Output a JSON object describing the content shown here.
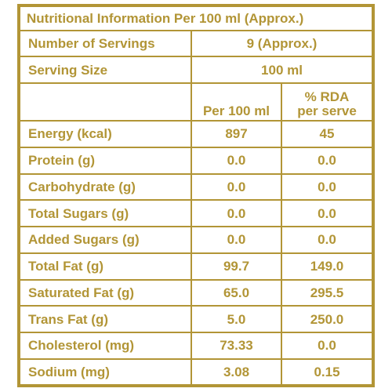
{
  "title": "Nutritional Information Per 100 ml (Approx.)",
  "servings": {
    "label": "Number of Servings",
    "value": "9 (Approx.)"
  },
  "serving_size": {
    "label": "Serving Size",
    "value": "100 ml"
  },
  "columns": {
    "per100": "Per 100 ml",
    "rda_line1": "% RDA",
    "rda_line2": "per serve"
  },
  "rows": [
    {
      "label": "Energy (kcal)",
      "per100": "897",
      "rda": "45"
    },
    {
      "label": "Protein (g)",
      "per100": "0.0",
      "rda": "0.0"
    },
    {
      "label": "Carbohydrate (g)",
      "per100": "0.0",
      "rda": "0.0"
    },
    {
      "label": "Total Sugars (g)",
      "per100": "0.0",
      "rda": "0.0"
    },
    {
      "label": "Added Sugars (g)",
      "per100": "0.0",
      "rda": "0.0"
    },
    {
      "label": "Total Fat (g)",
      "per100": "99.7",
      "rda": "149.0"
    },
    {
      "label": "Saturated Fat (g)",
      "per100": "65.0",
      "rda": "295.5"
    },
    {
      "label": "Trans Fat (g)",
      "per100": "5.0",
      "rda": "250.0"
    },
    {
      "label": "Cholesterol (mg)",
      "per100": "73.33",
      "rda": "0.0"
    },
    {
      "label": "Sodium (mg)",
      "per100": "3.08",
      "rda": "0.15"
    }
  ],
  "colors": {
    "accent": "#b29536",
    "background": "#ffffff"
  }
}
